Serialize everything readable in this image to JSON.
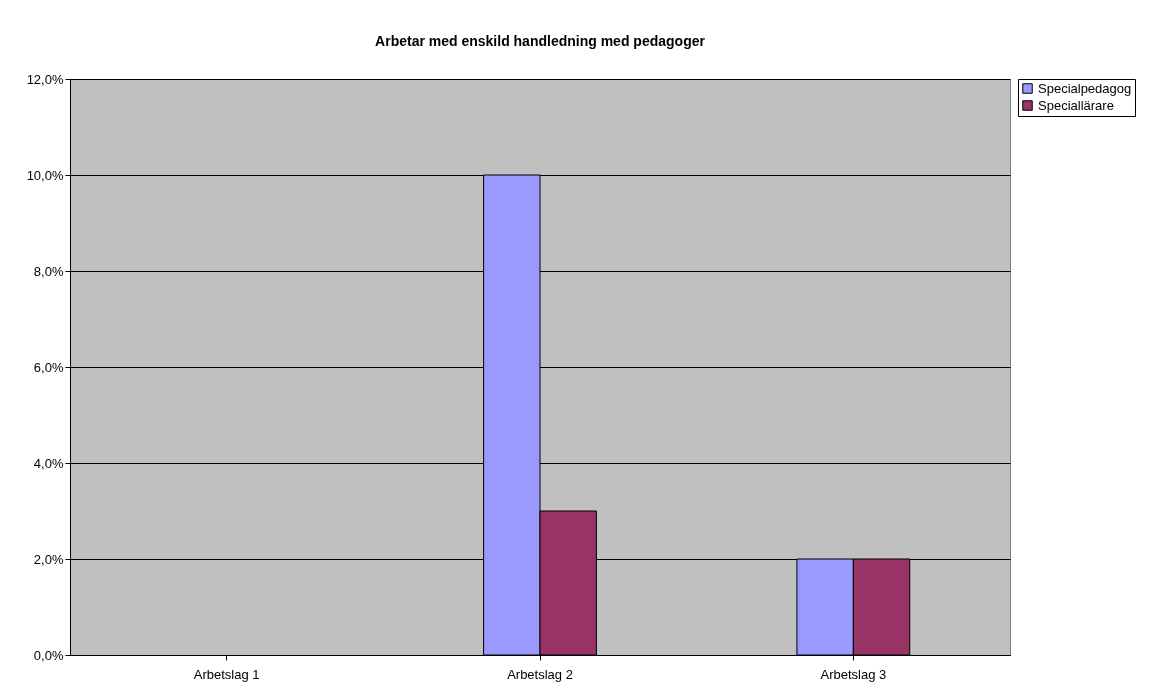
{
  "chart_data": {
    "type": "bar",
    "title": "Arbetar med enskild handledning med pedagoger",
    "categories": [
      "Arbetslag 1",
      "Arbetslag 2",
      "Arbetslag 3"
    ],
    "series": [
      {
        "name": "Specialpedagog",
        "color": "#9999ff",
        "values": [
          null,
          10,
          2
        ]
      },
      {
        "name": "Speciallärare",
        "color": "#993366",
        "values": [
          null,
          3,
          2
        ]
      }
    ],
    "ylim": [
      0,
      12
    ],
    "yticks": [
      {
        "value": 0,
        "label": "0,0%"
      },
      {
        "value": 2,
        "label": "2,0%"
      },
      {
        "value": 4,
        "label": "4,0%"
      },
      {
        "value": 6,
        "label": "6,0%"
      },
      {
        "value": 8,
        "label": "8,0%"
      },
      {
        "value": 10,
        "label": "10,0%"
      },
      {
        "value": 12,
        "label": "12,0%"
      }
    ],
    "grid": "y",
    "legend": "right"
  }
}
